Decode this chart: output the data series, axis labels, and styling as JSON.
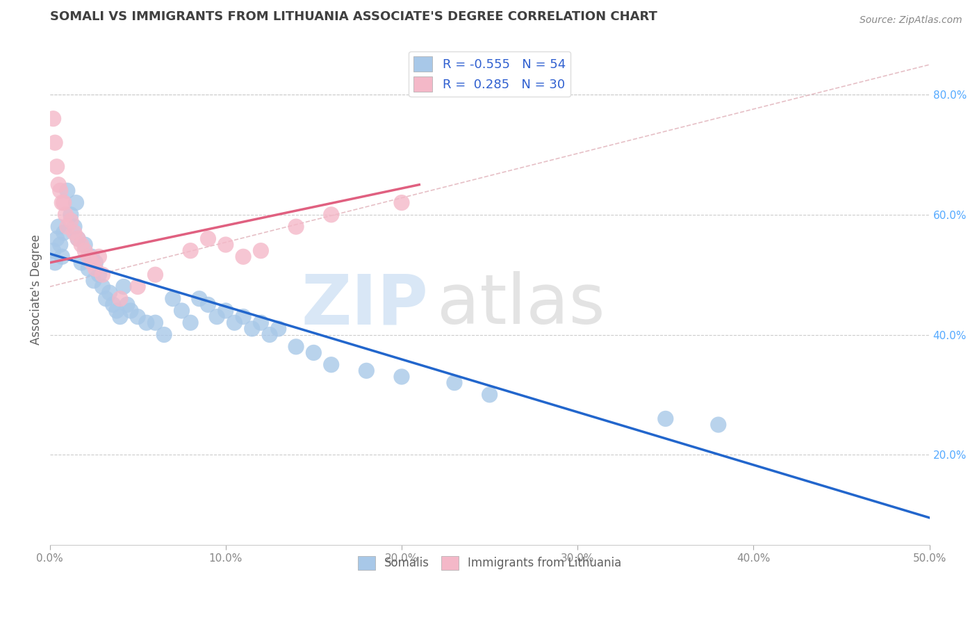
{
  "title": "SOMALI VS IMMIGRANTS FROM LITHUANIA ASSOCIATE'S DEGREE CORRELATION CHART",
  "source_text": "Source: ZipAtlas.com",
  "ylabel": "Associate's Degree",
  "xlim": [
    0.0,
    0.5
  ],
  "ylim": [
    0.05,
    0.9
  ],
  "xticks": [
    0.0,
    0.1,
    0.2,
    0.3,
    0.4,
    0.5
  ],
  "xtick_labels": [
    "0.0%",
    "10.0%",
    "20.0%",
    "30.0%",
    "40.0%",
    "50.0%"
  ],
  "ytick_labels_right": [
    "20.0%",
    "40.0%",
    "60.0%",
    "80.0%"
  ],
  "ytick_vals_right": [
    0.2,
    0.4,
    0.6,
    0.8
  ],
  "somali_R": -0.555,
  "somali_N": 54,
  "lithuania_R": 0.285,
  "lithuania_N": 30,
  "somali_color": "#a8c8e8",
  "somali_line_color": "#2266cc",
  "lithuania_color": "#f4b8c8",
  "lithuania_line_color": "#e06080",
  "dashed_line_color": "#e0b0b8",
  "background_color": "#ffffff",
  "grid_color": "#cccccc",
  "title_color": "#404040",
  "watermark_ZIP_color": "#c0d8f0",
  "watermark_atlas_color": "#c8c8c8",
  "legend_label_somali": "Somalis",
  "legend_label_lithuania": "Immigrants from Lithuania",
  "somali_x": [
    0.002,
    0.003,
    0.004,
    0.005,
    0.006,
    0.007,
    0.008,
    0.01,
    0.012,
    0.014,
    0.015,
    0.016,
    0.018,
    0.02,
    0.022,
    0.024,
    0.025,
    0.026,
    0.028,
    0.03,
    0.032,
    0.034,
    0.036,
    0.038,
    0.04,
    0.042,
    0.044,
    0.046,
    0.05,
    0.055,
    0.06,
    0.065,
    0.07,
    0.075,
    0.08,
    0.085,
    0.09,
    0.095,
    0.1,
    0.105,
    0.11,
    0.115,
    0.12,
    0.125,
    0.13,
    0.14,
    0.15,
    0.16,
    0.18,
    0.2,
    0.23,
    0.25,
    0.35,
    0.38
  ],
  "somali_y": [
    0.54,
    0.52,
    0.56,
    0.58,
    0.55,
    0.53,
    0.57,
    0.64,
    0.6,
    0.58,
    0.62,
    0.56,
    0.52,
    0.55,
    0.51,
    0.53,
    0.49,
    0.52,
    0.5,
    0.48,
    0.46,
    0.47,
    0.45,
    0.44,
    0.43,
    0.48,
    0.45,
    0.44,
    0.43,
    0.42,
    0.42,
    0.4,
    0.46,
    0.44,
    0.42,
    0.46,
    0.45,
    0.43,
    0.44,
    0.42,
    0.43,
    0.41,
    0.42,
    0.4,
    0.41,
    0.38,
    0.37,
    0.35,
    0.34,
    0.33,
    0.32,
    0.3,
    0.26,
    0.25
  ],
  "lithuania_x": [
    0.002,
    0.003,
    0.004,
    0.005,
    0.006,
    0.007,
    0.008,
    0.009,
    0.01,
    0.012,
    0.014,
    0.016,
    0.018,
    0.02,
    0.022,
    0.024,
    0.026,
    0.028,
    0.03,
    0.04,
    0.05,
    0.06,
    0.08,
    0.09,
    0.1,
    0.11,
    0.12,
    0.14,
    0.16,
    0.2
  ],
  "lithuania_y": [
    0.76,
    0.72,
    0.68,
    0.65,
    0.64,
    0.62,
    0.62,
    0.6,
    0.58,
    0.59,
    0.57,
    0.56,
    0.55,
    0.54,
    0.53,
    0.52,
    0.51,
    0.53,
    0.5,
    0.46,
    0.48,
    0.5,
    0.54,
    0.56,
    0.55,
    0.53,
    0.54,
    0.58,
    0.6,
    0.62
  ],
  "somali_line_x": [
    0.0,
    0.5
  ],
  "somali_line_y": [
    0.535,
    0.095
  ],
  "lithuania_line_x": [
    0.0,
    0.21
  ],
  "lithuania_line_y": [
    0.52,
    0.65
  ],
  "dashed_line_x": [
    0.0,
    0.5
  ],
  "dashed_line_y": [
    0.48,
    0.85
  ]
}
